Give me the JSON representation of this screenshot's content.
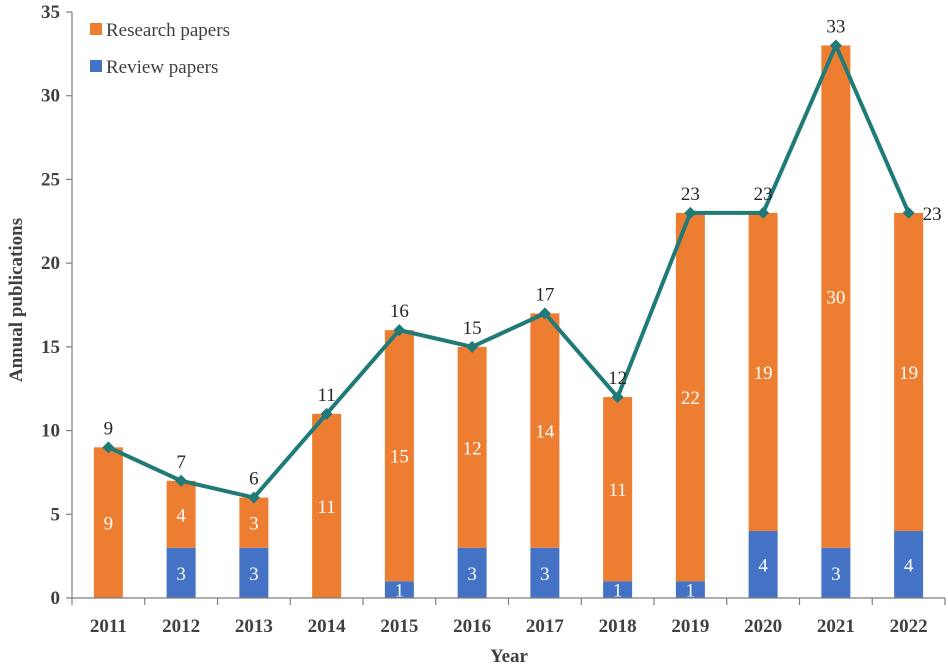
{
  "chart_data": {
    "type": "bar",
    "stacked": true,
    "title": "",
    "xlabel": "Year",
    "ylabel": "Annual publications",
    "ylim": [
      0,
      35
    ],
    "yticks": [
      0,
      5,
      10,
      15,
      20,
      25,
      30,
      35
    ],
    "grid": false,
    "legend_position": "top-left",
    "categories": [
      "2011",
      "2012",
      "2013",
      "2014",
      "2015",
      "2016",
      "2017",
      "2018",
      "2019",
      "2020",
      "2021",
      "2022"
    ],
    "series": [
      {
        "name": "Review papers",
        "color": "#4472C4",
        "values": [
          0,
          3,
          3,
          0,
          1,
          3,
          3,
          1,
          1,
          4,
          3,
          4
        ],
        "labels": [
          "",
          "3",
          "3",
          "",
          "1",
          "3",
          "3",
          "1",
          "1",
          "4",
          "3",
          "4"
        ]
      },
      {
        "name": "Research papers",
        "color": "#ED7D31",
        "values": [
          9,
          4,
          3,
          11,
          15,
          12,
          14,
          11,
          22,
          19,
          30,
          19
        ],
        "labels": [
          "9",
          "4",
          "3",
          "11",
          "15",
          "12",
          "14",
          "11",
          "22",
          "19",
          "30",
          "19"
        ]
      }
    ],
    "total_line": {
      "color": "#1F7A78",
      "values": [
        9,
        7,
        6,
        11,
        16,
        15,
        17,
        12,
        23,
        23,
        33,
        23
      ],
      "labels": [
        "9",
        "7",
        "6",
        "11",
        "16",
        "15",
        "17",
        "12",
        "23",
        "23",
        "33",
        "23"
      ]
    },
    "legend": [
      {
        "label": "Research papers",
        "color": "#ED7D31"
      },
      {
        "label": "Review papers",
        "color": "#4472C4"
      }
    ]
  }
}
